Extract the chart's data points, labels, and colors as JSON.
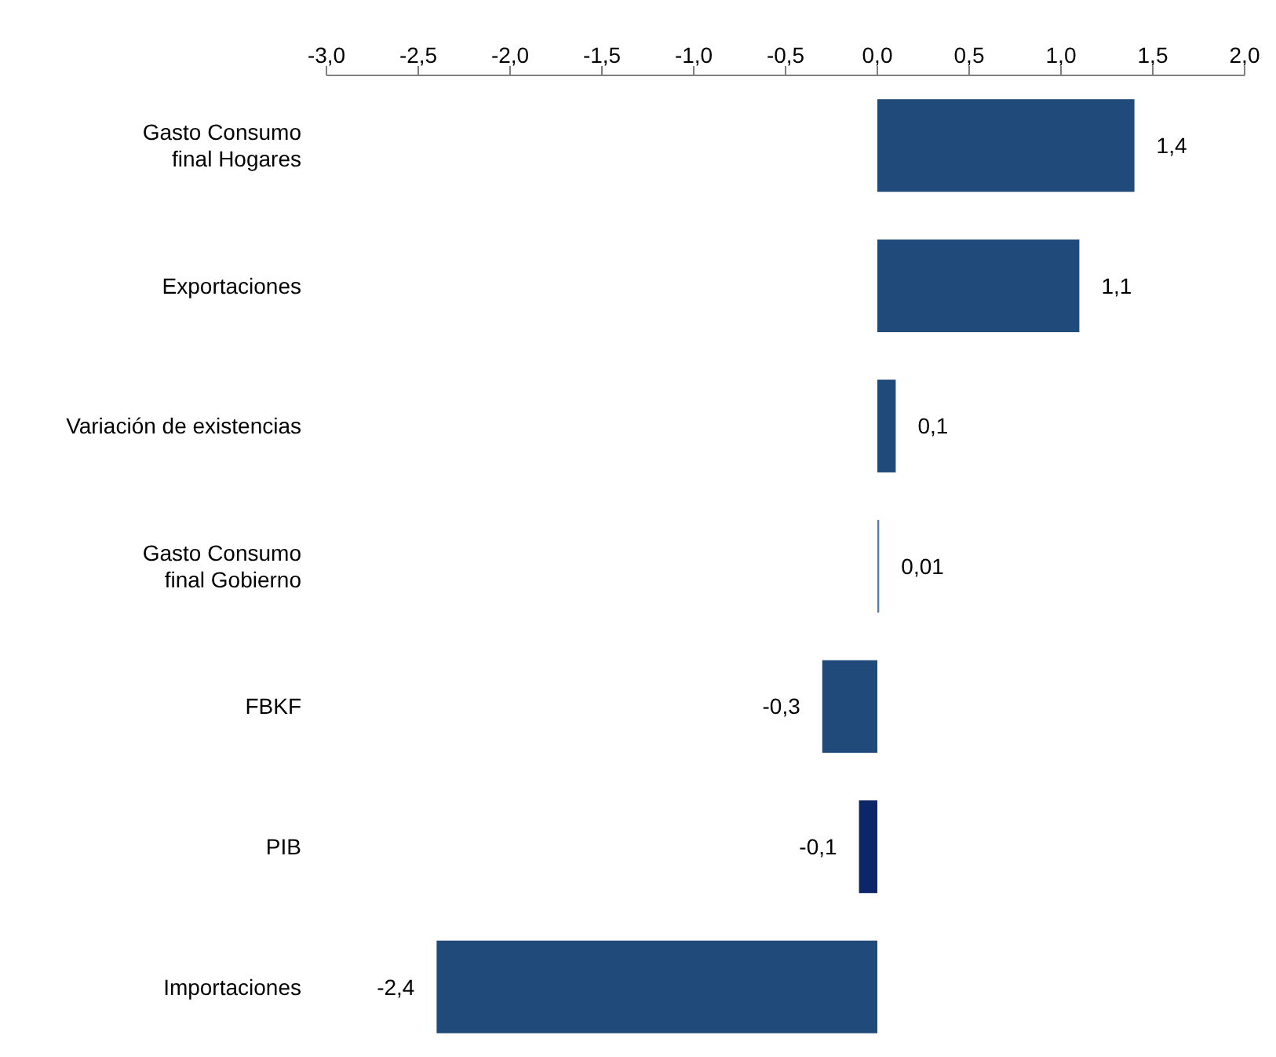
{
  "chart_data": {
    "type": "bar",
    "orientation": "horizontal",
    "categories": [
      "Gasto Consumo\nfinal Hogares",
      "Exportaciones",
      "Variación de existencias",
      "Gasto Consumo\nfinal Gobierno",
      "FBKF",
      "PIB",
      "Importaciones"
    ],
    "values": [
      1.4,
      1.1,
      0.1,
      0.01,
      -0.3,
      -0.1,
      -2.4
    ],
    "value_labels": [
      "1,4",
      "1,1",
      "0,1",
      "0,01",
      "-0,3",
      "-0,1",
      "-2,4"
    ],
    "colors": [
      "#1f4a7a",
      "#1f4a7a",
      "#1f4a7a",
      "#5a7aa6",
      "#1f4a7a",
      "#0c2668",
      "#1f4a7a"
    ],
    "xlim": [
      -3,
      2
    ],
    "xticks": [
      {
        "value": -3,
        "label": "-3,0"
      },
      {
        "value": -2.5,
        "label": "-2,5"
      },
      {
        "value": -2,
        "label": "-2,0"
      },
      {
        "value": -1.5,
        "label": "-1,5"
      },
      {
        "value": -1,
        "label": "-1,0"
      },
      {
        "value": -0.5,
        "label": "-0,5"
      },
      {
        "value": 0,
        "label": "0,0"
      },
      {
        "value": 0.5,
        "label": "0,5"
      },
      {
        "value": 1,
        "label": "1,0"
      },
      {
        "value": 1.5,
        "label": "1,5"
      },
      {
        "value": 2,
        "label": "2,0"
      }
    ],
    "grid": false,
    "legend": false
  }
}
